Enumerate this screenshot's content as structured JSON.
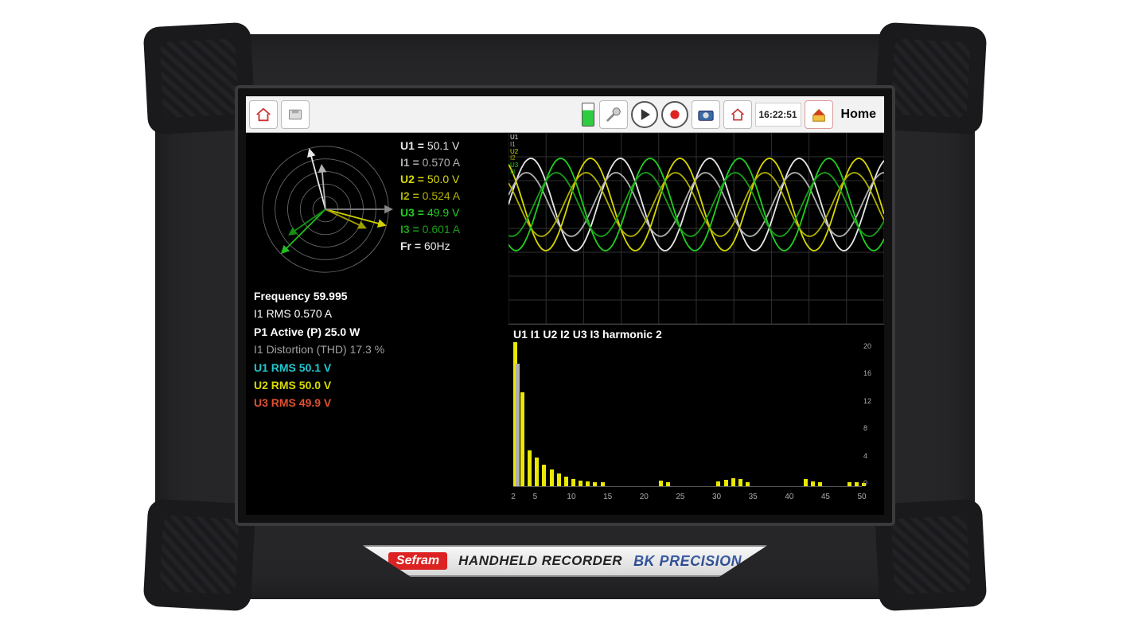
{
  "toolbar": {
    "time": "16:22:51",
    "date": "",
    "home_label": "Home"
  },
  "phasor": {
    "rings": 5,
    "vectors": [
      {
        "angle": 105,
        "len": 0.98,
        "color": "#e8e8e8",
        "arrow": true
      },
      {
        "angle": 345,
        "len": 0.98,
        "color": "#d0d000",
        "arrow": true
      },
      {
        "angle": 225,
        "len": 0.98,
        "color": "#20c020",
        "arrow": true
      },
      {
        "angle": 95,
        "len": 0.7,
        "color": "#b0b0b0",
        "arrow": true
      },
      {
        "angle": 335,
        "len": 0.7,
        "color": "#a0a000",
        "arrow": true
      },
      {
        "angle": 215,
        "len": 0.7,
        "color": "#149014",
        "arrow": true
      },
      {
        "angle": 0,
        "len": 1.05,
        "color": "#888888",
        "arrow": true
      }
    ]
  },
  "readings": [
    {
      "label": "U1 =",
      "value": "50.1 V",
      "color": "#e8e8e8"
    },
    {
      "label": "I1 =",
      "value": "0.570 A",
      "color": "#b0b0b0"
    },
    {
      "label": "U2 =",
      "value": "50.0 V",
      "color": "#d8d800"
    },
    {
      "label": "I2 =",
      "value": "0.524 A",
      "color": "#b0b000"
    },
    {
      "label": "U3 =",
      "value": "49.9 V",
      "color": "#20d020"
    },
    {
      "label": "I3 =",
      "value": "0.601 A",
      "color": "#18a018"
    },
    {
      "label": "Fr =",
      "value": "60Hz",
      "color": "#e8e8e8"
    }
  ],
  "stats": [
    {
      "text": "Frequency  59.995",
      "color": "#ffffff",
      "bold": true
    },
    {
      "text": "I1 RMS  0.570 A",
      "color": "#ffffff",
      "bold": false
    },
    {
      "text": "P1 Active (P)  25.0 W",
      "color": "#ffffff",
      "bold": true
    },
    {
      "text": "I1 Distortion (THD)  17.3 %",
      "color": "#a0a0a0",
      "bold": false
    },
    {
      "text": "U1 RMS  50.1 V",
      "color": "#20c8d0",
      "bold": true
    },
    {
      "text": "U2 RMS  50.0 V",
      "color": "#d8d800",
      "bold": true
    },
    {
      "text": "U3 RMS  49.9 V",
      "color": "#e05030",
      "bold": true
    }
  ],
  "waveform": {
    "labels": [
      {
        "t": "U1",
        "c": "#e8e8e8"
      },
      {
        "t": "I1",
        "c": "#b0b0b0"
      },
      {
        "t": "U2",
        "c": "#d8d800"
      },
      {
        "t": "I2",
        "c": "#b0b000"
      },
      {
        "t": "U3",
        "c": "#20d020"
      },
      {
        "t": "I3",
        "c": "#18a018"
      }
    ],
    "traces": [
      {
        "color": "#e8e8e8",
        "amp": 58,
        "phase": 0.0,
        "periods": 4.2
      },
      {
        "color": "#b0b0b0",
        "amp": 40,
        "phase": 0.3,
        "periods": 4.2
      },
      {
        "color": "#d8d800",
        "amp": 58,
        "phase": 2.09,
        "periods": 4.2
      },
      {
        "color": "#b0b000",
        "amp": 40,
        "phase": 2.4,
        "periods": 4.2
      },
      {
        "color": "#20d020",
        "amp": 58,
        "phase": 4.19,
        "periods": 4.2
      },
      {
        "color": "#18a018",
        "amp": 40,
        "phase": 4.49,
        "periods": 4.2
      }
    ],
    "grid_color": "#303030"
  },
  "harmonics": {
    "title": "U1 I1 U2 I2 U3 I3 harmonic 2",
    "ymax": 20,
    "yticks": [
      20,
      16,
      12,
      8,
      4,
      0
    ],
    "xticks": [
      2,
      5,
      10,
      15,
      20,
      25,
      30,
      35,
      40,
      45,
      50
    ],
    "bars": [
      {
        "x": 2,
        "h": 20.0,
        "c": "#e8e800"
      },
      {
        "x": 2,
        "h": 17.0,
        "c": "#b0b0b0",
        "dx": 3
      },
      {
        "x": 3,
        "h": 13.0,
        "c": "#e8e800"
      },
      {
        "x": 4,
        "h": 5.0,
        "c": "#e8e800"
      },
      {
        "x": 5,
        "h": 4.0,
        "c": "#e8e800"
      },
      {
        "x": 6,
        "h": 3.0,
        "c": "#e8e800"
      },
      {
        "x": 7,
        "h": 2.3,
        "c": "#e8e800"
      },
      {
        "x": 8,
        "h": 1.8,
        "c": "#e8e800"
      },
      {
        "x": 9,
        "h": 1.3,
        "c": "#e8e800"
      },
      {
        "x": 10,
        "h": 1.0,
        "c": "#e8e800"
      },
      {
        "x": 11,
        "h": 0.8,
        "c": "#e8e800"
      },
      {
        "x": 12,
        "h": 0.7,
        "c": "#e8e800"
      },
      {
        "x": 13,
        "h": 0.6,
        "c": "#e8e800"
      },
      {
        "x": 14,
        "h": 0.5,
        "c": "#e8e800"
      },
      {
        "x": 22,
        "h": 0.8,
        "c": "#e8e800"
      },
      {
        "x": 23,
        "h": 0.6,
        "c": "#e8e800"
      },
      {
        "x": 30,
        "h": 0.7,
        "c": "#e8e800"
      },
      {
        "x": 31,
        "h": 0.9,
        "c": "#e8e800"
      },
      {
        "x": 32,
        "h": 1.1,
        "c": "#e8e800"
      },
      {
        "x": 33,
        "h": 1.0,
        "c": "#e8e800"
      },
      {
        "x": 34,
        "h": 0.6,
        "c": "#e8e800"
      },
      {
        "x": 42,
        "h": 1.0,
        "c": "#e8e800"
      },
      {
        "x": 43,
        "h": 0.7,
        "c": "#e8e800"
      },
      {
        "x": 44,
        "h": 0.5,
        "c": "#e8e800"
      },
      {
        "x": 48,
        "h": 0.6,
        "c": "#e8e800"
      },
      {
        "x": 49,
        "h": 0.5,
        "c": "#e8e800"
      },
      {
        "x": 50,
        "h": 0.4,
        "c": "#e8e800"
      }
    ]
  },
  "labelplate": {
    "brand1": "Sefram",
    "title": "HANDHELD RECORDER",
    "brand2": "BK PRECISION"
  }
}
